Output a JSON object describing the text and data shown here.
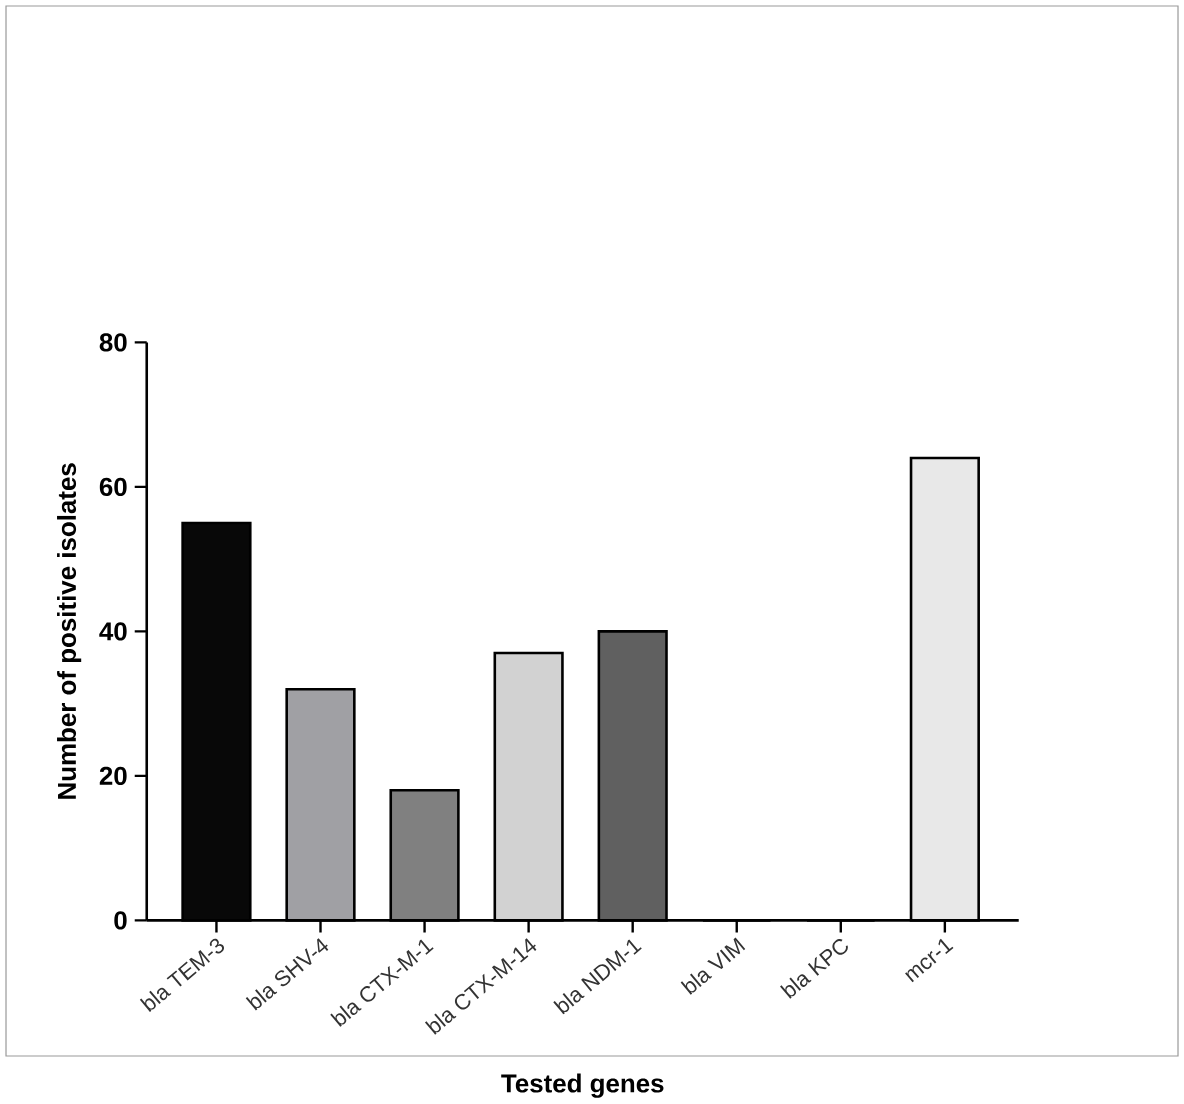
{
  "chart_data": {
    "type": "bar",
    "xlabel": "Tested genes",
    "ylabel": "Number of positive isolates",
    "categories": [
      "bla TEM-3",
      "bla SHV-4",
      "bla CTX-M-1",
      "bla CTX-M-14",
      "bla NDM-1",
      "bla VIM",
      "bla KPC",
      "mcr-1"
    ],
    "values": [
      55,
      32,
      18,
      37,
      40,
      0,
      0,
      64
    ],
    "colors": [
      "#080808",
      "#a0a0a4",
      "#808080",
      "#d2d2d2",
      "#606060",
      "#d0d0d0",
      "#d0d0d0",
      "#e8e8e8"
    ],
    "ylim": [
      0,
      80
    ],
    "yticks": [
      0,
      20,
      40,
      60,
      80
    ],
    "grid": false
  }
}
